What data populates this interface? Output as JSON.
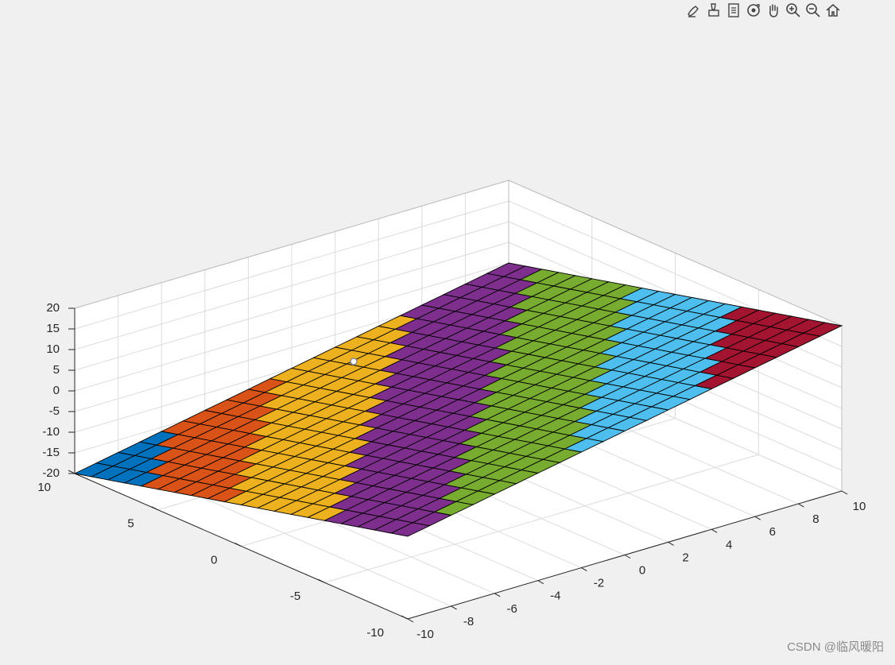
{
  "toolbar": {
    "buttons": [
      {
        "name": "brush-icon"
      },
      {
        "name": "data-tips-icon"
      },
      {
        "name": "legend-icon"
      },
      {
        "name": "rotate-3d-icon"
      },
      {
        "name": "pan-icon"
      },
      {
        "name": "zoom-in-icon"
      },
      {
        "name": "zoom-out-icon"
      },
      {
        "name": "home-icon"
      }
    ]
  },
  "watermark": "CSDN @临风暖阳",
  "chart_data": {
    "type": "surface",
    "function": "z = x - y",
    "x": [
      -10,
      -9,
      -8,
      -7,
      -6,
      -5,
      -4,
      -3,
      -2,
      -1,
      0,
      1,
      2,
      3,
      4,
      5,
      6,
      7,
      8,
      9,
      10
    ],
    "y": [
      -10,
      -9,
      -8,
      -7,
      -6,
      -5,
      -4,
      -3,
      -2,
      -1,
      0,
      1,
      2,
      3,
      4,
      5,
      6,
      7,
      8,
      9,
      10
    ],
    "xlim": [
      -10,
      10
    ],
    "ylim": [
      -10,
      10
    ],
    "zlim": [
      -20,
      20
    ],
    "x_ticks": [
      "-10",
      "-8",
      "-6",
      "-4",
      "-2",
      "0",
      "2",
      "4",
      "6",
      "8",
      "10"
    ],
    "y_ticks": [
      "-10",
      "-5",
      "0",
      "5",
      "10"
    ],
    "z_ticks": [
      "-20",
      "-15",
      "-10",
      "-5",
      "0",
      "5",
      "10",
      "15",
      "20"
    ],
    "grid": true,
    "colors": [
      "#0072BD",
      "#D95319",
      "#EDB120",
      "#7E2F8E",
      "#77AC30",
      "#4DBEEE",
      "#A2142F"
    ],
    "band_edges": [
      -20,
      -15,
      -10,
      -4,
      2,
      8,
      14,
      20
    ]
  }
}
